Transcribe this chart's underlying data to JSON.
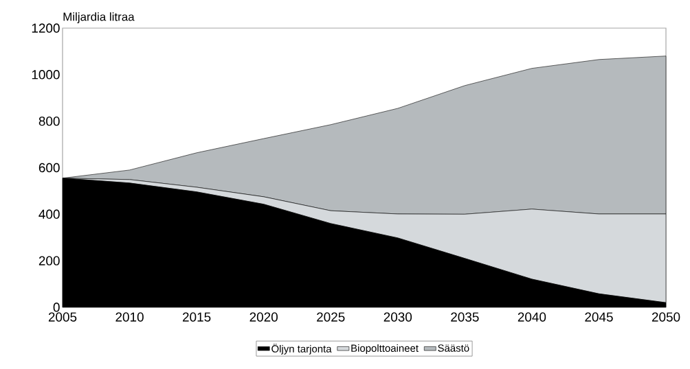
{
  "chart_data": {
    "type": "area",
    "ylabel": "Miljardia litraa",
    "stacked": true,
    "legend": "bottom",
    "x": [
      2005,
      2010,
      2015,
      2020,
      2025,
      2030,
      2035,
      2040,
      2045,
      2050
    ],
    "xlim": [
      2005,
      2050
    ],
    "xticks": [
      2005,
      2010,
      2015,
      2020,
      2025,
      2030,
      2035,
      2040,
      2045,
      2050
    ],
    "ylim": [
      0,
      1200
    ],
    "yticks": [
      0,
      200,
      400,
      600,
      800,
      1000,
      1200
    ],
    "series": [
      {
        "name": "Öljyn tarjonta",
        "color": "#000000",
        "values": [
          555,
          534,
          496,
          443,
          360,
          298,
          210,
          121,
          58,
          20
        ]
      },
      {
        "name": "Biopolttoaineet",
        "color": "#d5d9dc",
        "values": [
          0,
          15,
          20,
          32,
          55,
          103,
          190,
          301,
          343,
          381
        ]
      },
      {
        "name": "Säästö",
        "color": "#b5babd",
        "values": [
          0,
          41,
          148,
          250,
          370,
          454,
          553,
          605,
          664,
          679
        ]
      }
    ]
  }
}
